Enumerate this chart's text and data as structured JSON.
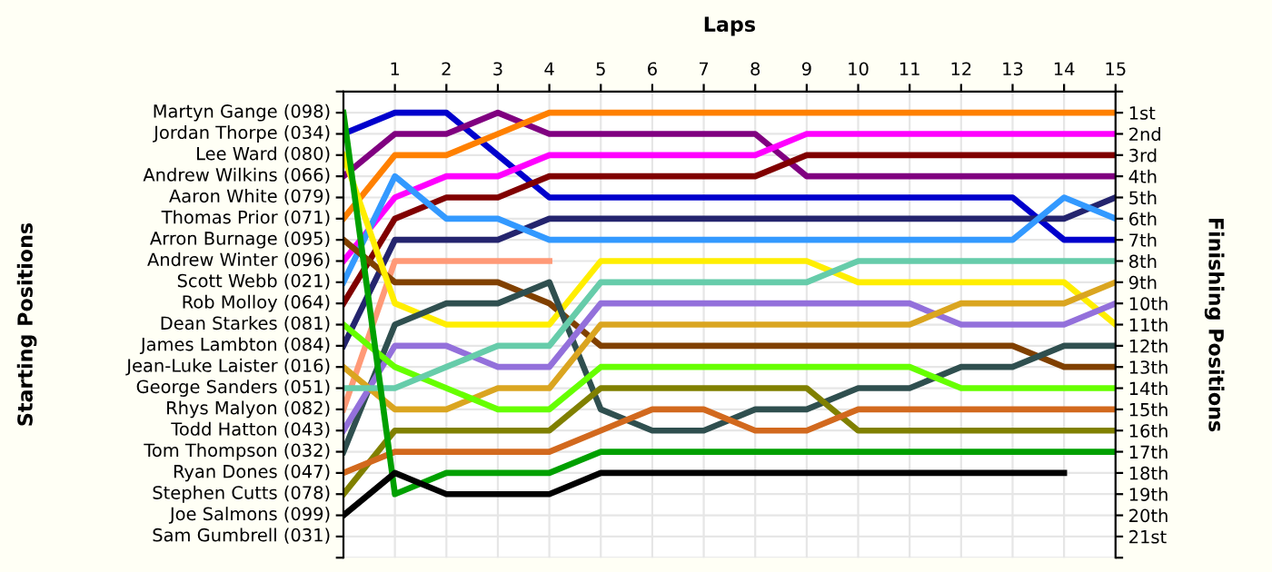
{
  "chart_data": {
    "type": "line",
    "xlabel": "Laps",
    "ylabel": "Finishing Positions",
    "x": [
      0,
      1,
      2,
      3,
      4,
      5,
      6,
      7,
      8,
      9,
      10,
      11,
      12,
      13,
      14,
      15
    ],
    "xlim": [
      0,
      15
    ],
    "xticks": [
      1,
      2,
      3,
      4,
      5,
      6,
      7,
      8,
      9,
      10,
      11,
      12,
      13,
      14,
      15
    ],
    "annotations": [
      "Starting Positions",
      "Martyn Gange (098)",
      "Jordan Thorpe (034)",
      "Lee Ward (080)",
      "Andrew Wilkins (066)",
      "Aaron White (079)",
      "Thomas Prior (071)",
      "Arron Burnage (095)",
      "Andrew Winter (096)",
      "Scott Webb (021)",
      "Rob Molloy (064)",
      "Dean Starkes (081)",
      "James Lambton (084)",
      "Jean-Luke Laister (016)",
      "George Sanders (051)",
      "Rhys Malyon (082)",
      "Todd Hatton (043)",
      "Tom Thompson (032)",
      "Ryan Dones (047)",
      "Stephen Cutts (078)",
      "Joe Salmons (099)",
      "Sam Gumbrell (031)"
    ],
    "ylim": [
      22,
      0
    ],
    "yticks": [
      {
        "value": 0,
        "label": null
      },
      {
        "value": 1,
        "label": "1st"
      },
      {
        "value": 2,
        "label": "2nd"
      },
      {
        "value": 3,
        "label": "3rd"
      },
      {
        "value": 4,
        "label": "4th"
      },
      {
        "value": 5,
        "label": "5th"
      },
      {
        "value": 6,
        "label": "6th"
      },
      {
        "value": 7,
        "label": "7th"
      },
      {
        "value": 8,
        "label": "8th"
      },
      {
        "value": 9,
        "label": "9th"
      },
      {
        "value": 10,
        "label": "10th"
      },
      {
        "value": 11,
        "label": "11th"
      },
      {
        "value": 12,
        "label": "12th"
      },
      {
        "value": 13,
        "label": "13th"
      },
      {
        "value": 14,
        "label": "14th"
      },
      {
        "value": 15,
        "label": "15th"
      },
      {
        "value": 16,
        "label": "16th"
      },
      {
        "value": 17,
        "label": "17th"
      },
      {
        "value": 18,
        "label": "18th"
      },
      {
        "value": 19,
        "label": "19th"
      },
      {
        "value": 20,
        "label": "20th"
      },
      {
        "value": 21,
        "label": "21st"
      },
      {
        "value": 22,
        "label": null
      }
    ],
    "grid": true,
    "marker": "none",
    "line_style": "solid",
    "series": [
      {
        "color": "#0000cc",
        "values": [
          2,
          1,
          1,
          3,
          5,
          5,
          5,
          5,
          5,
          5,
          5,
          5,
          5,
          5,
          7,
          7
        ]
      },
      {
        "color": "#800080",
        "values": [
          4,
          2,
          2,
          1,
          2,
          2,
          2,
          2,
          2,
          4,
          4,
          4,
          4,
          4,
          4,
          4
        ]
      },
      {
        "color": "#ff8000",
        "values": [
          6,
          3,
          3,
          2,
          1,
          1,
          1,
          1,
          1,
          1,
          1,
          1,
          1,
          1,
          1,
          1
        ]
      },
      {
        "color": "#ff00ff",
        "values": [
          8,
          5,
          4,
          4,
          3,
          3,
          3,
          3,
          3,
          2,
          2,
          2,
          2,
          2,
          2,
          2
        ]
      },
      {
        "color": "#800000",
        "values": [
          10,
          6,
          5,
          5,
          4,
          4,
          4,
          4,
          4,
          3,
          3,
          3,
          3,
          3,
          3,
          3
        ]
      },
      {
        "color": "#24246e",
        "values": [
          12,
          7,
          7,
          7,
          6,
          6,
          6,
          6,
          6,
          6,
          6,
          6,
          6,
          6,
          6,
          5
        ]
      },
      {
        "color": "#3399ff",
        "values": [
          9,
          4,
          6,
          6,
          7,
          7,
          7,
          7,
          7,
          7,
          7,
          7,
          7,
          7,
          5,
          6
        ]
      },
      {
        "color": "#ff9977",
        "values": [
          15,
          8,
          8,
          8,
          8,
          null,
          null,
          null,
          null,
          null,
          null,
          null,
          null,
          null,
          null,
          null
        ]
      },
      {
        "color": "#804000",
        "values": [
          7,
          9,
          9,
          9,
          10,
          12,
          12,
          12,
          12,
          12,
          12,
          12,
          12,
          12,
          13,
          13
        ]
      },
      {
        "color": "#ffee00",
        "values": [
          3,
          10,
          11,
          11,
          11,
          8,
          8,
          8,
          8,
          8,
          9,
          9,
          9,
          9,
          9,
          11
        ]
      },
      {
        "color": "#2f4f4f",
        "values": [
          17,
          11,
          10,
          10,
          9,
          15,
          16,
          16,
          15,
          15,
          14,
          14,
          13,
          13,
          12,
          12
        ]
      },
      {
        "color": "#9370db",
        "values": [
          16,
          12,
          12,
          13,
          13,
          10,
          10,
          10,
          10,
          10,
          10,
          10,
          11,
          11,
          11,
          10
        ]
      },
      {
        "color": "#daa520",
        "values": [
          13,
          15,
          15,
          14,
          14,
          11,
          11,
          11,
          11,
          11,
          11,
          11,
          10,
          10,
          10,
          9
        ]
      },
      {
        "color": "#66ff00",
        "values": [
          11,
          13,
          14,
          15,
          15,
          13,
          13,
          13,
          13,
          13,
          13,
          13,
          14,
          14,
          14,
          14
        ]
      },
      {
        "color": "#66ccaa",
        "values": [
          14,
          14,
          13,
          12,
          12,
          9,
          9,
          9,
          9,
          9,
          8,
          8,
          8,
          8,
          8,
          8
        ]
      },
      {
        "color": "#808000",
        "values": [
          19,
          16,
          16,
          16,
          16,
          14,
          14,
          14,
          14,
          14,
          16,
          16,
          16,
          16,
          16,
          16
        ]
      },
      {
        "color": "#d2691e",
        "values": [
          18,
          17,
          17,
          17,
          17,
          16,
          15,
          15,
          16,
          16,
          15,
          15,
          15,
          15,
          15,
          15
        ]
      },
      {
        "color": "#00a000",
        "values": [
          1,
          19,
          18,
          18,
          18,
          17,
          17,
          17,
          17,
          17,
          17,
          17,
          17,
          17,
          17,
          17
        ]
      },
      {
        "color": "#000000",
        "values": [
          20,
          18,
          19,
          19,
          19,
          18,
          18,
          18,
          18,
          18,
          18,
          18,
          18,
          18,
          18,
          null
        ]
      }
    ]
  }
}
